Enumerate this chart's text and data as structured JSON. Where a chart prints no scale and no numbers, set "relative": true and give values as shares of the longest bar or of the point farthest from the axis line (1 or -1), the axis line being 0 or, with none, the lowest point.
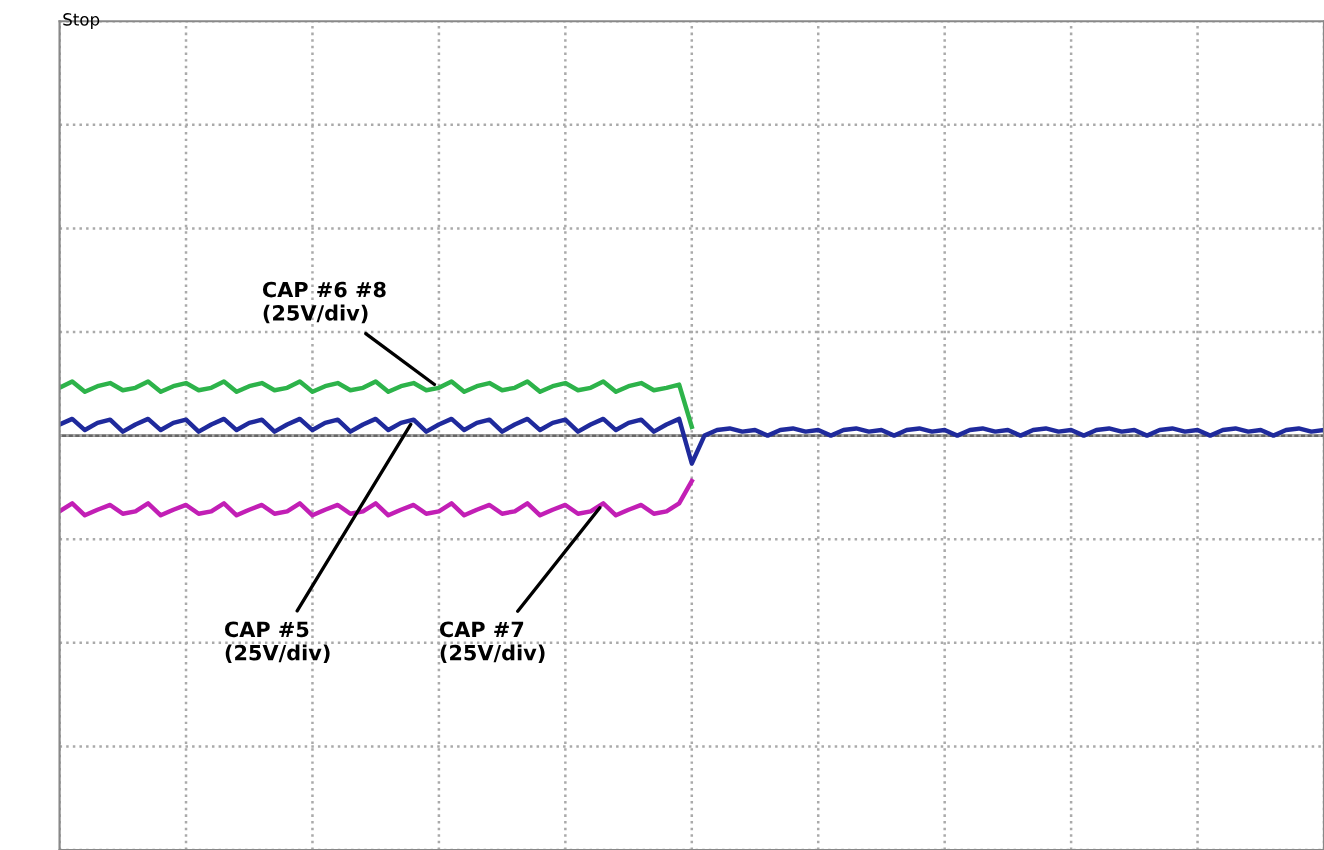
{
  "chart_data": {
    "type": "line",
    "relative": true,
    "grid": true,
    "line_style": "solid",
    "annotations": [
      "Stop"
    ],
    "categories": [
      null,
      null,
      null,
      null,
      null,
      null,
      null,
      null,
      null,
      null,
      null,
      null,
      null,
      null,
      null,
      null,
      null,
      null,
      null,
      null,
      null,
      null,
      null,
      null,
      null,
      null,
      null,
      null,
      null,
      null,
      null,
      null,
      null,
      null,
      null,
      null,
      null,
      null,
      null,
      null,
      null,
      null,
      null,
      null,
      null,
      null,
      null,
      null,
      null,
      null,
      null,
      null,
      null,
      null,
      null,
      null,
      null,
      null,
      null,
      null,
      null,
      null,
      null,
      null,
      null,
      null,
      null,
      null,
      null,
      null,
      null,
      null,
      null,
      null,
      null,
      null,
      null,
      null,
      null,
      null,
      null,
      null,
      null,
      null,
      null,
      null,
      null,
      null,
      null,
      null,
      null,
      null,
      null,
      null,
      null,
      null,
      null,
      null,
      null,
      null,
      null
    ],
    "series": [
      {
        "name": "CAP #6 #8\n(25V/div)",
        "color": "#2db34a",
        "values": [
          0.6,
          0.68,
          0.55,
          0.62,
          0.66,
          0.57,
          0.6,
          0.68,
          0.55,
          0.62,
          0.66,
          0.57,
          0.6,
          0.68,
          0.55,
          0.62,
          0.66,
          0.57,
          0.6,
          0.68,
          0.55,
          0.62,
          0.66,
          0.57,
          0.6,
          0.68,
          0.55,
          0.62,
          0.66,
          0.57,
          0.6,
          0.68,
          0.55,
          0.62,
          0.66,
          0.57,
          0.6,
          0.68,
          0.55,
          0.62,
          0.66,
          0.57,
          0.6,
          0.68,
          0.55,
          0.62,
          0.66,
          0.57,
          0.6,
          0.64,
          0.11,
          null,
          null,
          null,
          null,
          null,
          null,
          null,
          null,
          null,
          null,
          null,
          null,
          null,
          null,
          null,
          null,
          null,
          null,
          null,
          null,
          null,
          null,
          null,
          null,
          null,
          null,
          null,
          null,
          null,
          null,
          null,
          null,
          null,
          null,
          null,
          null,
          null,
          null,
          null,
          null,
          null,
          null,
          null,
          null,
          null,
          null,
          null,
          null,
          null,
          null
        ]
      },
      {
        "name": "CAP #5\n(25V/div)",
        "color": "#1f2a9c",
        "values": [
          0.14,
          0.21,
          0.07,
          0.16,
          0.2,
          0.05,
          0.14,
          0.21,
          0.07,
          0.16,
          0.2,
          0.05,
          0.14,
          0.21,
          0.07,
          0.16,
          0.2,
          0.05,
          0.14,
          0.21,
          0.07,
          0.16,
          0.2,
          0.05,
          0.14,
          0.21,
          0.07,
          0.16,
          0.2,
          0.05,
          0.14,
          0.21,
          0.07,
          0.16,
          0.2,
          0.05,
          0.14,
          0.21,
          0.07,
          0.16,
          0.2,
          0.05,
          0.14,
          0.21,
          0.07,
          0.16,
          0.2,
          0.05,
          0.14,
          0.21,
          -0.35,
          0.0,
          0.07,
          0.09,
          0.05,
          0.07,
          0.0,
          0.07,
          0.09,
          0.05,
          0.07,
          0.0,
          0.07,
          0.09,
          0.05,
          0.07,
          0.0,
          0.07,
          0.09,
          0.05,
          0.07,
          0.0,
          0.07,
          0.09,
          0.05,
          0.07,
          0.0,
          0.07,
          0.09,
          0.05,
          0.07,
          0.0,
          0.07,
          0.09,
          0.05,
          0.07,
          0.0,
          0.07,
          0.09,
          0.05,
          0.07,
          0.0,
          0.07,
          0.09,
          0.05,
          0.07,
          0.0,
          0.07,
          0.09,
          0.05,
          0.07
        ]
      },
      {
        "name": "CAP #7\n(25V/div)",
        "color": "#c21fb5",
        "values": [
          -0.95,
          -0.85,
          -1.0,
          -0.93,
          -0.87,
          -0.98,
          -0.95,
          -0.85,
          -1.0,
          -0.93,
          -0.87,
          -0.98,
          -0.95,
          -0.85,
          -1.0,
          -0.93,
          -0.87,
          -0.98,
          -0.95,
          -0.85,
          -1.0,
          -0.93,
          -0.87,
          -0.98,
          -0.95,
          -0.85,
          -1.0,
          -0.93,
          -0.87,
          -0.98,
          -0.95,
          -0.85,
          -1.0,
          -0.93,
          -0.87,
          -0.98,
          -0.95,
          -0.85,
          -1.0,
          -0.93,
          -0.87,
          -0.98,
          -0.95,
          -0.85,
          -1.0,
          -0.93,
          -0.87,
          -0.98,
          -0.95,
          -0.85,
          -0.57,
          null,
          null,
          null,
          null,
          null,
          null,
          null,
          null,
          null,
          null,
          null,
          null,
          null,
          null,
          null,
          null,
          null,
          null,
          null,
          null,
          null,
          null,
          null,
          null,
          null,
          null,
          null,
          null,
          null,
          null,
          null,
          null,
          null,
          null,
          null,
          null,
          null,
          null,
          null,
          null,
          null,
          null,
          null,
          null,
          null,
          null,
          null,
          null,
          null,
          null
        ]
      }
    ]
  }
}
